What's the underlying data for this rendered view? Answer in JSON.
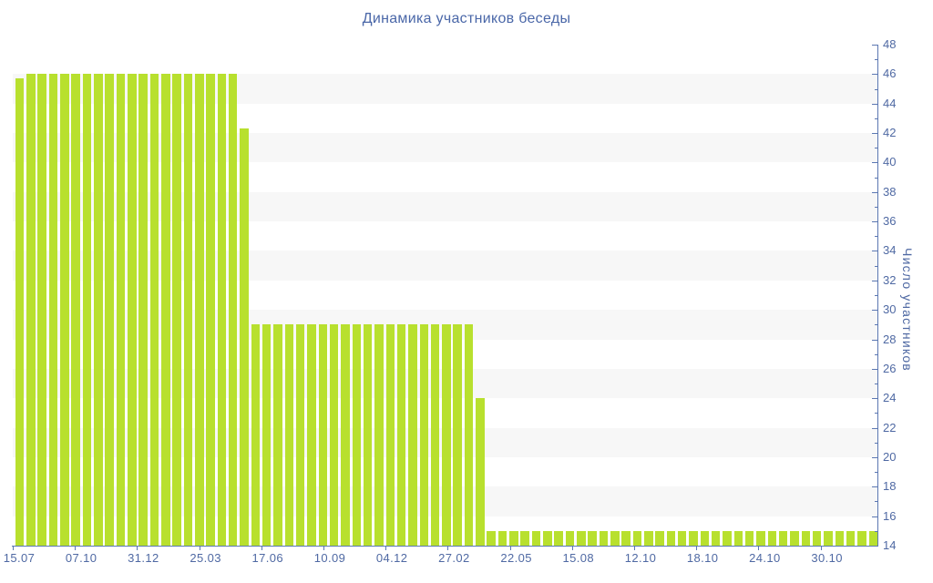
{
  "chart": {
    "title": "Динамика участников беседы",
    "y_axis_title": "Число участников"
  },
  "colors": {
    "bar": "#b8e02e",
    "band": "#f7f7f7",
    "axis_line": "#5b77b2",
    "label_text": "#4f69a3",
    "title_text": "#4a67a8",
    "background": "#ffffff"
  },
  "chart_data": {
    "type": "bar",
    "title": "Динамика участников беседы",
    "xlabel": "",
    "ylabel": "Число участников",
    "ylim": [
      14,
      48
    ],
    "y_tick_step": 2,
    "y_minor_tick_step": 1,
    "y_tick_labels": [
      14,
      16,
      18,
      20,
      22,
      24,
      26,
      28,
      30,
      32,
      34,
      36,
      38,
      40,
      42,
      44,
      46,
      48
    ],
    "x_tick_labels": [
      "15.07",
      "07.10",
      "31.12",
      "25.03",
      "17.06",
      "10.09",
      "04.12",
      "27.02",
      "22.05",
      "15.08",
      "12.10",
      "18.10",
      "24.10",
      "30.10"
    ],
    "values": [
      45.7,
      46,
      46,
      46,
      46,
      46,
      46,
      46,
      46,
      46,
      46,
      46,
      46,
      46,
      46,
      46,
      46,
      46,
      46,
      46,
      42.3,
      29,
      29,
      29,
      29,
      29,
      29,
      29,
      29,
      29,
      29,
      29,
      29,
      29,
      29,
      29,
      29,
      29,
      29,
      29,
      29,
      24,
      15,
      15,
      15,
      15,
      15,
      15,
      15,
      15,
      15,
      15,
      15,
      15,
      15,
      15,
      15,
      15,
      15,
      15,
      15,
      15,
      15,
      15,
      15,
      15,
      15,
      15,
      15,
      15,
      15,
      15,
      15,
      15,
      15,
      15,
      15
    ],
    "grid": "alternating horizontal gray bands every 2 units (46-44, 42-40, ... 18-16)",
    "legend": "none",
    "axis_position": "y-axis on right, labels outside"
  }
}
